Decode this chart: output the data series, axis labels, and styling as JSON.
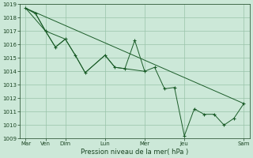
{
  "bg_color": "#cce8d8",
  "grid_color": "#99c4aa",
  "line_color": "#1a5c28",
  "ylim": [
    1009,
    1019
  ],
  "yticks": [
    1009,
    1010,
    1011,
    1012,
    1013,
    1014,
    1015,
    1016,
    1017,
    1018,
    1019
  ],
  "x_tick_positions": [
    0,
    1,
    2,
    4,
    6,
    8,
    11
  ],
  "x_tick_labels": [
    "Mar",
    "Ven",
    "Dim",
    "Lun",
    "Mer",
    "Jeu",
    "Sam"
  ],
  "xlabel": "Pression niveau de la mer( hPa )",
  "series0_x": [
    0,
    0.5,
    1,
    1.5,
    2,
    2.5,
    3,
    4,
    4.5,
    5,
    5.5,
    6,
    6.5,
    7,
    7.5,
    8,
    8.5,
    9,
    9.5,
    10,
    10.5,
    11
  ],
  "series0_y": [
    1018.7,
    1018.3,
    1017.0,
    1015.8,
    1016.4,
    1015.2,
    1013.9,
    1015.2,
    1014.3,
    1014.2,
    1016.3,
    1014.0,
    1014.3,
    1012.7,
    1012.8,
    1009.2,
    1011.2,
    1010.8,
    1010.8,
    1010.0,
    1010.5,
    1011.6
  ],
  "trend_x": [
    0,
    11
  ],
  "trend_y": [
    1018.7,
    1011.6
  ],
  "line2_x": [
    0,
    1,
    2,
    2.5,
    3,
    4,
    4.5,
    5,
    6
  ],
  "line2_y": [
    1018.7,
    1017.0,
    1016.4,
    1015.2,
    1013.9,
    1015.2,
    1014.3,
    1014.2,
    1014.0
  ],
  "line3_x": [
    0,
    0.5,
    1,
    1.5,
    2
  ],
  "line3_y": [
    1018.7,
    1018.3,
    1017.0,
    1015.8,
    1016.4
  ]
}
